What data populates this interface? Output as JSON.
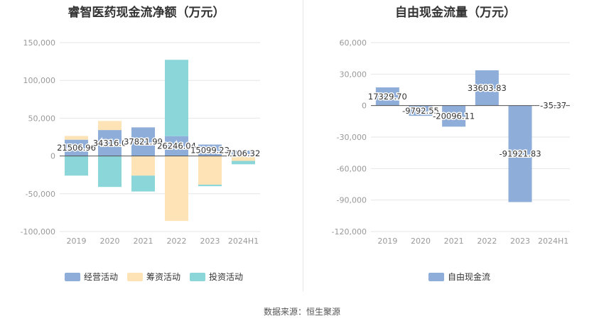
{
  "source_note": "数据来源：恒生聚源",
  "chart_data": [
    {
      "type": "bar",
      "stacked": true,
      "title": "睿智医药现金流净额（万元）",
      "categories": [
        "2019",
        "2020",
        "2021",
        "2022",
        "2023",
        "2024H1"
      ],
      "ylim": [
        -100000,
        150000
      ],
      "yticks": [
        -100000,
        -50000,
        0,
        50000,
        100000,
        150000
      ],
      "ytick_labels": [
        "-100,000",
        "-50,000",
        "0",
        "50,000",
        "100,000",
        "150,000"
      ],
      "grid": true,
      "legend_position": "bottom",
      "series": [
        {
          "name": "经营活动",
          "color": "#8eadd9",
          "values": [
            21506.96,
            34316.0,
            37821.99,
            26246.04,
            15099.23,
            7106.32
          ]
        },
        {
          "name": "筹资活动",
          "color": "#fde3b6",
          "values": [
            5000,
            12000,
            -26000,
            -86000,
            -38000,
            -6500
          ]
        },
        {
          "name": "投资活动",
          "color": "#8bd6d9",
          "values": [
            -26000,
            -41000,
            -21000,
            101000,
            -2000,
            -4500
          ]
        }
      ],
      "data_labels": [
        "21506.96",
        "34316.0",
        "37821.99",
        "26246.04",
        "15099.23",
        "7106.32"
      ]
    },
    {
      "type": "bar",
      "title": "自由现金流量（万元）",
      "categories": [
        "2019",
        "2020",
        "2021",
        "2022",
        "2023",
        "2024H1"
      ],
      "ylim": [
        -120000,
        60000
      ],
      "yticks": [
        -120000,
        -90000,
        -60000,
        -30000,
        0,
        30000,
        60000
      ],
      "ytick_labels": [
        "-120,000",
        "-90,000",
        "-60,000",
        "-30,000",
        "0",
        "30,000",
        "60,000"
      ],
      "grid": true,
      "legend_position": "bottom",
      "series": [
        {
          "name": "自由现金流",
          "color": "#8eadd9",
          "values": [
            17329.7,
            -9792.55,
            -20096.11,
            33603.83,
            -91921.83,
            -35.37
          ]
        }
      ],
      "data_labels": [
        "17329.70",
        "-9792.55",
        "-20096.11",
        "33603.83",
        "-91921.83",
        "-35.37"
      ]
    }
  ]
}
